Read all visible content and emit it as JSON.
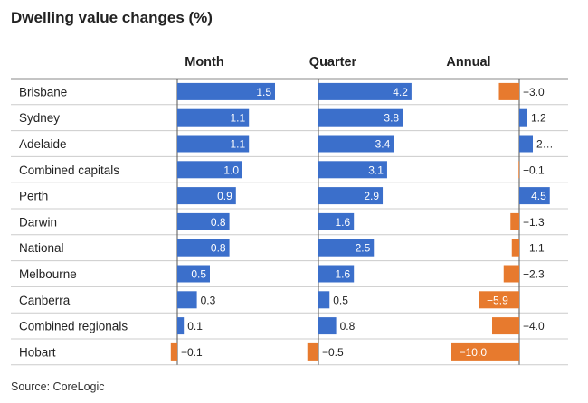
{
  "title": "Dwelling value changes (%)",
  "source": "Source: CoreLogic",
  "colors": {
    "positive": "#3b6fcb",
    "negative": "#e77a2e",
    "rule": "#cccccc",
    "text": "#222222"
  },
  "chart_data": {
    "type": "bar",
    "title": "Dwelling value changes (%)",
    "categories": [
      "Brisbane",
      "Sydney",
      "Adelaide",
      "Combined capitals",
      "Perth",
      "Darwin",
      "National",
      "Melbourne",
      "Canberra",
      "Combined regionals",
      "Hobart"
    ],
    "series": [
      {
        "name": "Month",
        "values": [
          1.5,
          1.1,
          1.1,
          1.0,
          0.9,
          0.8,
          0.8,
          0.5,
          0.3,
          0.1,
          -0.1
        ],
        "labels": [
          "1.5",
          "1.1",
          "1.1",
          "1.0",
          "0.9",
          "0.8",
          "0.8",
          "0.5",
          "0.3",
          "0.1",
          "−0.1"
        ]
      },
      {
        "name": "Quarter",
        "values": [
          4.2,
          3.8,
          3.4,
          3.1,
          2.9,
          1.6,
          2.5,
          1.6,
          0.5,
          0.8,
          -0.5
        ],
        "labels": [
          "4.2",
          "3.8",
          "3.4",
          "3.1",
          "2.9",
          "1.6",
          "2.5",
          "1.6",
          "0.5",
          "0.8",
          "−0.5"
        ]
      },
      {
        "name": "Annual",
        "values": [
          -3.0,
          1.2,
          2.0,
          -0.1,
          4.5,
          -1.3,
          -1.1,
          -2.3,
          -5.9,
          -4.0,
          -10.0
        ],
        "labels": [
          "−3.0",
          "1.2",
          "2…",
          "−0.1",
          "4.5",
          "−1.3",
          "−1.1",
          "−2.3",
          "−5.9",
          "−4.0",
          "−10.0"
        ]
      }
    ],
    "grid": false,
    "legend": "none"
  }
}
